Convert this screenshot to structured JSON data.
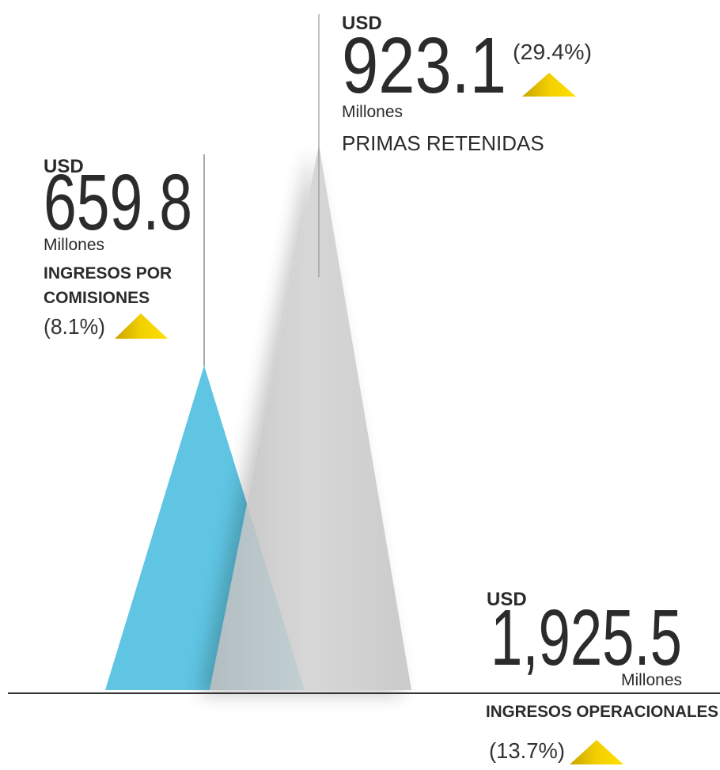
{
  "items": [
    {
      "currency": "USD",
      "value": "923.1",
      "unit": "Millones",
      "label_lines": [
        "PRIMAS RETENIDAS"
      ],
      "change": "(29.4%)"
    },
    {
      "currency": "USD",
      "value": "659.8",
      "unit": "Millones",
      "label_lines": [
        "INGRESOS POR",
        "COMISIONES"
      ],
      "change": "(8.1%)"
    },
    {
      "currency": "USD",
      "value": "1,925.5",
      "unit": "Millones",
      "label_lines": [
        "INGRESOS OPERACIONALES"
      ],
      "change": "(13.7%)"
    }
  ]
}
